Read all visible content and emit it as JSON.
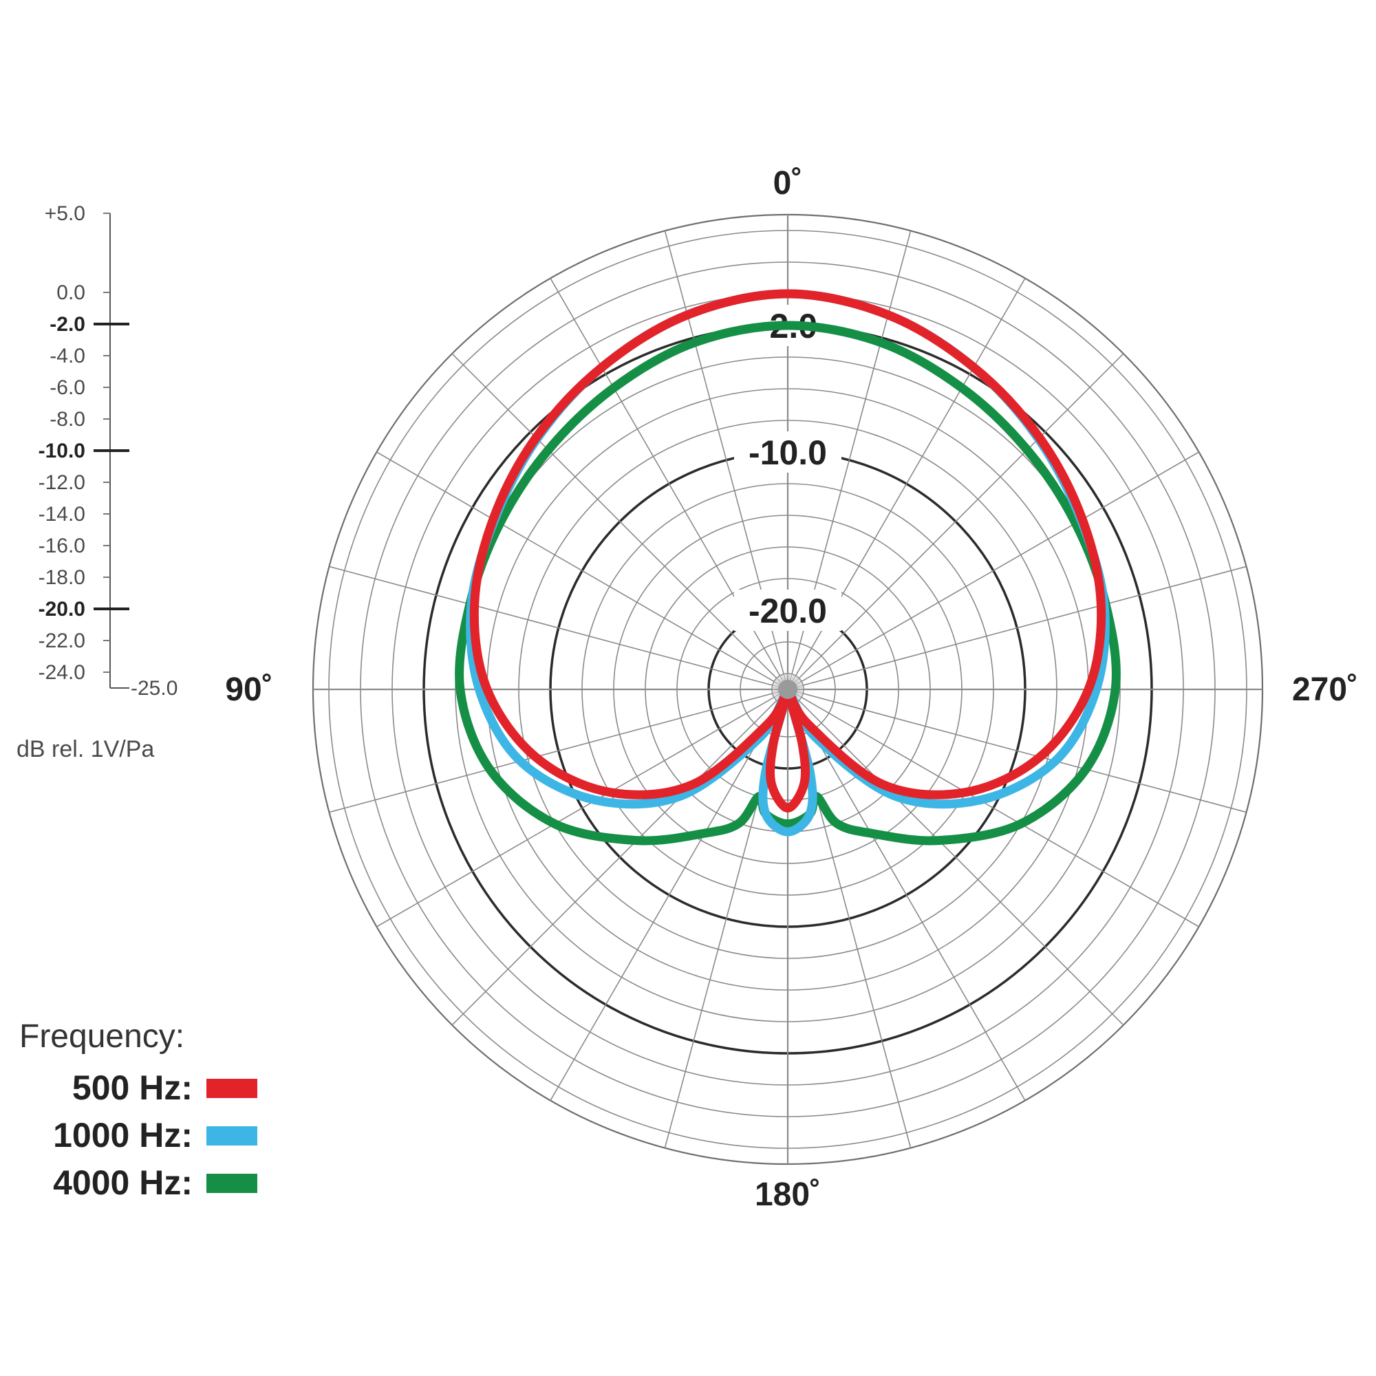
{
  "chart_data": {
    "type": "polar",
    "radial_range": [
      -25.0,
      5.0
    ],
    "radial_unit_label": "dB rel. 1V/Pa",
    "radial_scale_ticks": [
      "+5.0",
      "0.0",
      "-2.0",
      "-4.0",
      "-6.0",
      "-8.0",
      "-10.0",
      "-12.0",
      "-14.0",
      "-16.0",
      "-18.0",
      "-20.0",
      "-22.0",
      "-24.0",
      "-25.0"
    ],
    "radial_scale_major": [
      "-2.0",
      "-10.0",
      "-20.0"
    ],
    "ring_labels": [
      "-2.0",
      "-10.0",
      "-20.0"
    ],
    "angle_labels": {
      "top": "0˚",
      "left": "90˚",
      "right": "270˚",
      "bottom": "180˚"
    },
    "grid": true,
    "legend_title": "Frequency:",
    "legend_position": "bottom-left",
    "series": [
      {
        "name": "500 Hz:",
        "color": "#e2232a",
        "points": [
          [
            0,
            0.0
          ],
          [
            15,
            -0.5
          ],
          [
            30,
            -1.5
          ],
          [
            45,
            -2.5
          ],
          [
            60,
            -3.5
          ],
          [
            75,
            -4.5
          ],
          [
            90,
            -6.0
          ],
          [
            105,
            -8.5
          ],
          [
            120,
            -12.0
          ],
          [
            135,
            -16.5
          ],
          [
            150,
            -22.5
          ],
          [
            160,
            -24.8
          ],
          [
            165,
            -21.5
          ],
          [
            170,
            -19.0
          ],
          [
            180,
            -17.5
          ]
        ]
      },
      {
        "name": "1000 Hz:",
        "color": "#3db6e6",
        "points": [
          [
            0,
            0.0
          ],
          [
            15,
            -0.5
          ],
          [
            30,
            -1.5
          ],
          [
            45,
            -2.6
          ],
          [
            60,
            -3.6
          ],
          [
            75,
            -4.3
          ],
          [
            90,
            -5.5
          ],
          [
            105,
            -7.5
          ],
          [
            120,
            -11.0
          ],
          [
            135,
            -15.5
          ],
          [
            150,
            -21.5
          ],
          [
            160,
            -24.5
          ],
          [
            165,
            -19.5
          ],
          [
            170,
            -17.0
          ],
          [
            180,
            -16.0
          ]
        ]
      },
      {
        "name": "4000 Hz:",
        "color": "#148f45",
        "points": [
          [
            0,
            -2.0
          ],
          [
            15,
            -2.3
          ],
          [
            30,
            -3.0
          ],
          [
            45,
            -3.6
          ],
          [
            60,
            -4.0
          ],
          [
            75,
            -4.2
          ],
          [
            90,
            -4.3
          ],
          [
            105,
            -5.5
          ],
          [
            120,
            -8.0
          ],
          [
            135,
            -11.5
          ],
          [
            150,
            -14.5
          ],
          [
            160,
            -16.0
          ],
          [
            165,
            -18.0
          ],
          [
            170,
            -17.0
          ],
          [
            180,
            -16.5
          ]
        ]
      }
    ]
  }
}
